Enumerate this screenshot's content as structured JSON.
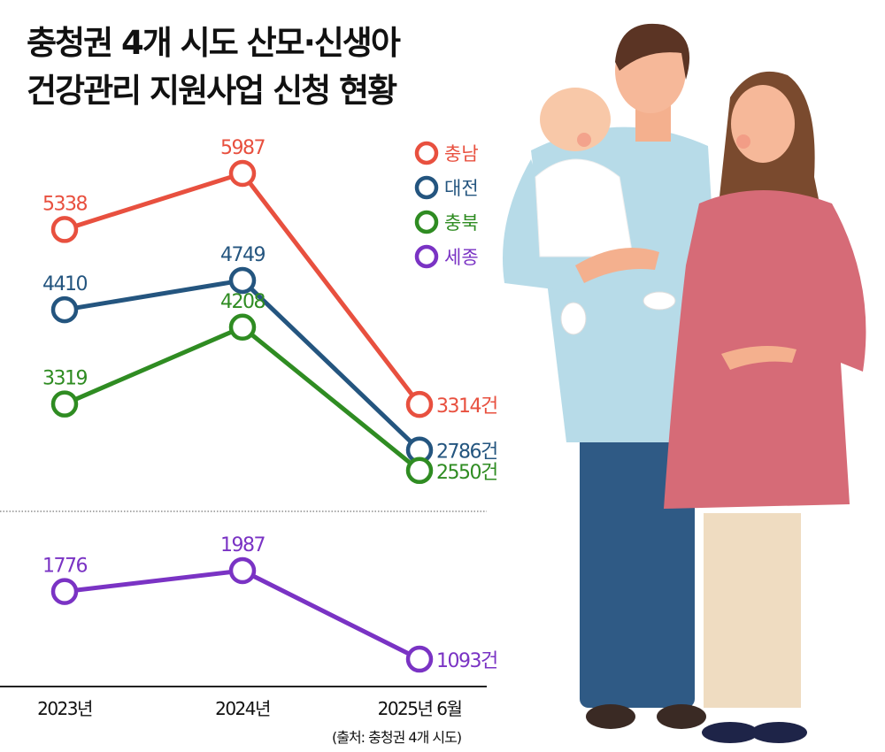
{
  "title_lines": [
    "충청권 4개 시도 산모·신생아",
    "건강관리 지원사업 신청 현황"
  ],
  "source": "(출처: 충청권 4개 시도)",
  "chart_data": {
    "type": "line",
    "title": "충청권 4개 시도 산모·신생아 건강관리 지원사업 신청 현황",
    "categories": [
      "2023년",
      "2024년",
      "2025년 6월"
    ],
    "unit_suffix": "건",
    "broken_axis": true,
    "grid": false,
    "legend_position": "top-right",
    "series": [
      {
        "name": "충남",
        "values": [
          5338,
          5987,
          3314
        ],
        "color": "#e8503f"
      },
      {
        "name": "대전",
        "values": [
          4410,
          4749,
          2786
        ],
        "color": "#24557f"
      },
      {
        "name": "충북",
        "values": [
          3319,
          4208,
          2550
        ],
        "color": "#2f8c22"
      },
      {
        "name": "세종",
        "values": [
          1776,
          1987,
          1093
        ],
        "color": "#7a33c4"
      }
    ]
  }
}
